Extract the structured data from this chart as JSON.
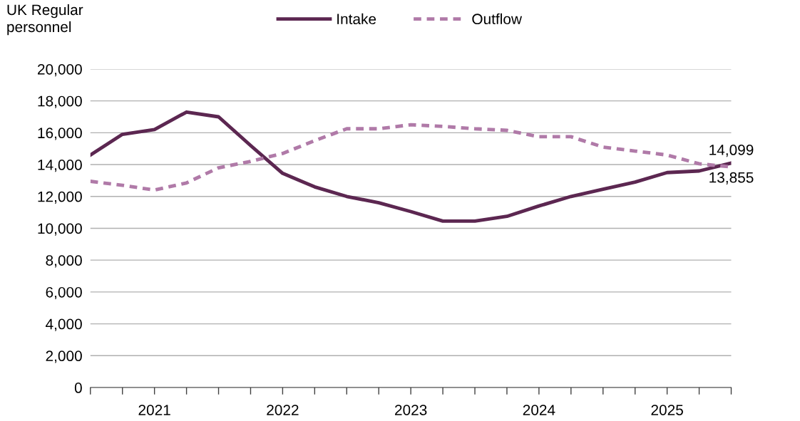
{
  "chart_data": {
    "type": "line",
    "ylabel": "UK Regular\npersonnel",
    "categories": [
      null,
      null,
      "2021",
      null,
      null,
      null,
      "2022",
      null,
      null,
      null,
      "2023",
      null,
      null,
      null,
      "2024",
      null,
      null,
      null,
      "2025",
      null,
      null
    ],
    "ylim": [
      0,
      20000
    ],
    "yticks": [
      {
        "value": 0,
        "label": "0"
      },
      {
        "value": 2000,
        "label": "2,000"
      },
      {
        "value": 4000,
        "label": "4,000"
      },
      {
        "value": 6000,
        "label": "6,000"
      },
      {
        "value": 8000,
        "label": "8,000"
      },
      {
        "value": 10000,
        "label": "10,000"
      },
      {
        "value": 12000,
        "label": "12,000"
      },
      {
        "value": 14000,
        "label": "14,000"
      },
      {
        "value": 16000,
        "label": "16,000"
      },
      {
        "value": 18000,
        "label": "18,000"
      },
      {
        "value": 20000,
        "label": "20,000"
      }
    ],
    "grid": "y",
    "legend": "top",
    "marker": "none",
    "series": [
      {
        "name": "Intake",
        "color": "#5c2751",
        "line_style": "solid",
        "values": [
          14600,
          15900,
          16200,
          17300,
          17000,
          15200,
          13450,
          12600,
          12000,
          11600,
          11050,
          10450,
          10450,
          10750,
          11400,
          12000,
          12450,
          12900,
          13500,
          13600,
          14099
        ],
        "value_labels": [
          null,
          null,
          null,
          null,
          null,
          null,
          null,
          null,
          null,
          null,
          null,
          null,
          null,
          null,
          null,
          null,
          null,
          null,
          null,
          null,
          "14,099"
        ]
      },
      {
        "name": "Outflow",
        "color": "#b07aa8",
        "line_style": "dashed",
        "values": [
          12950,
          12700,
          12400,
          12850,
          13800,
          14200,
          14700,
          15500,
          16250,
          16250,
          16500,
          16400,
          16250,
          16150,
          15750,
          15750,
          15100,
          14850,
          14600,
          14050,
          13855
        ],
        "value_labels": [
          null,
          null,
          null,
          null,
          null,
          null,
          null,
          null,
          null,
          null,
          null,
          null,
          null,
          null,
          null,
          null,
          null,
          null,
          null,
          null,
          "13,855"
        ]
      }
    ]
  }
}
